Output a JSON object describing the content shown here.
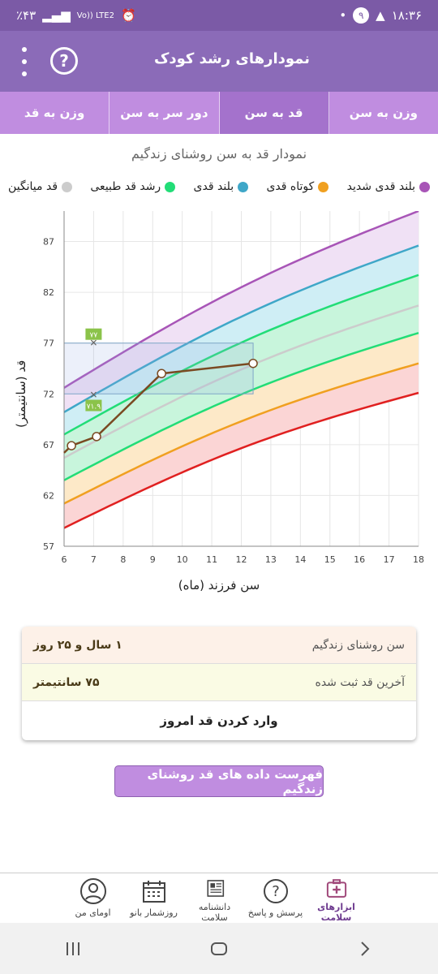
{
  "status": {
    "battery": "٪۴۳",
    "network": "Vo)) LTE2",
    "time": "۱۸:۳۶",
    "notif_count": "۹"
  },
  "app": {
    "title": "نمودارهای رشد کودک",
    "help_label": "?"
  },
  "tabs": [
    {
      "label": "وزن به قد",
      "active": false
    },
    {
      "label": "دور سر به سن",
      "active": false
    },
    {
      "label": "قد به سن",
      "active": true
    },
    {
      "label": "وزن به سن",
      "active": false
    }
  ],
  "chart_title": "نمودار قد به سن روشنای زندگیم",
  "legend": [
    {
      "label": "بلند قدی شدید",
      "color": "#a855b7"
    },
    {
      "label": "کوتاه قدی",
      "color": "#f0a020"
    },
    {
      "label": "بلند قدی",
      "color": "#3fa7c8"
    },
    {
      "label": "رشد قد طبیعی",
      "color": "#22dd77"
    },
    {
      "label": "قد میانگین",
      "color": "#cccccc"
    }
  ],
  "chart_data": {
    "type": "line",
    "xlabel": "سن فرزند (ماه)",
    "ylabel": "قد (سانتیمتر)",
    "xlim": [
      6,
      18
    ],
    "ylim": [
      57,
      90
    ],
    "xticks": [
      6,
      7,
      8,
      9,
      10,
      11,
      12,
      13,
      14,
      15,
      16,
      17,
      18
    ],
    "yticks": [
      57,
      62,
      67,
      72,
      77,
      82,
      87
    ],
    "curves": [
      {
        "name": "red",
        "color": "#e02020",
        "x": [
          6,
          18
        ],
        "y": [
          58.8,
          72.1
        ]
      },
      {
        "name": "orange",
        "color": "#f0a020",
        "x": [
          6,
          18
        ],
        "y": [
          61.2,
          75.0
        ]
      },
      {
        "name": "green-low",
        "color": "#22dd77",
        "x": [
          6,
          18
        ],
        "y": [
          63.5,
          78.0
        ]
      },
      {
        "name": "median",
        "color": "#cccccc",
        "x": [
          6,
          18
        ],
        "y": [
          65.7,
          80.7
        ]
      },
      {
        "name": "green-high",
        "color": "#22dd77",
        "x": [
          6,
          18
        ],
        "y": [
          68.0,
          83.7
        ]
      },
      {
        "name": "blue",
        "color": "#3fa7c8",
        "x": [
          6,
          18
        ],
        "y": [
          70.2,
          86.6
        ]
      },
      {
        "name": "purple",
        "color": "#a855b7",
        "x": [
          6,
          18
        ],
        "y": [
          72.6,
          90.0
        ]
      }
    ],
    "bands": [
      {
        "lower": "red",
        "upper": "orange",
        "fill": "#fbd5d5"
      },
      {
        "lower": "orange",
        "upper": "green-low",
        "fill": "#fde9c8"
      },
      {
        "lower": "green-low",
        "upper": "green-high",
        "fill": "#c8f5dc"
      },
      {
        "lower": "green-high",
        "upper": "blue",
        "fill": "#cfeef5"
      },
      {
        "lower": "blue",
        "upper": "purple",
        "fill": "#f0e1f5"
      }
    ],
    "series": [
      {
        "color": "#7a4a22",
        "x": [
          6.0,
          6.25,
          7.1,
          9.3,
          12.4
        ],
        "y": [
          66.2,
          66.9,
          67.8,
          74.0,
          75.0
        ]
      }
    ],
    "highlight_box": {
      "x": [
        6,
        12.4
      ],
      "y": [
        72,
        77
      ]
    },
    "markers": [
      {
        "x": 7,
        "y": 77,
        "label": "۷۷",
        "color": "#8bc34a"
      },
      {
        "x": 7,
        "y": 71.9,
        "label": "۷۱.۹",
        "color": "#8bc34a"
      }
    ]
  },
  "card": {
    "age_label": "سن روشنای زندگیم",
    "age_value": "۱ سال و ۲۵ روز",
    "height_label": "آخرین قد ثبت شده",
    "height_value": "۷۵ سانتیمتر",
    "enter_button": "وارد کردن قد امروز"
  },
  "list_button": "فهرست داده های قد روشنای زندگیم",
  "bottom_nav": [
    {
      "label": "ابزارهای سلامت",
      "icon": "medkit-icon",
      "active": true
    },
    {
      "label": "پرسش و پاسخ",
      "icon": "question-icon",
      "active": false
    },
    {
      "label": "دانشنامه سلامت",
      "icon": "newspaper-icon",
      "active": false
    },
    {
      "label": "روزشمار بانو",
      "icon": "calendar-icon",
      "active": false
    },
    {
      "label": "اومای من",
      "icon": "user-icon",
      "active": false
    }
  ]
}
